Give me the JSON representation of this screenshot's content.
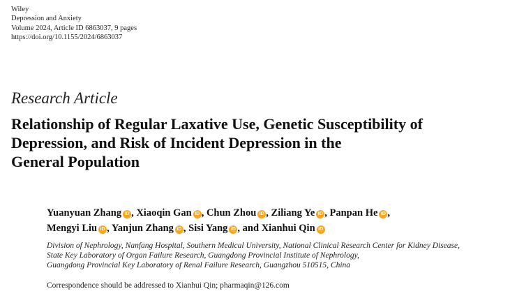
{
  "header": {
    "publisher": "Wiley",
    "journal": "Depression and Anxiety",
    "volume": "Volume 2024, Article ID 6863037, 9 pages",
    "doi": "https://doi.org/10.1155/2024/6863037"
  },
  "article_type": "Research Article",
  "title_lines": [
    "Relationship of Regular Laxative Use, Genetic Susceptibility of",
    "Depression, and Risk of Incident Depression in the",
    "General Population"
  ],
  "authors": [
    "Yuanyuan Zhang",
    "Xiaoqin Gan",
    "Chun Zhou",
    "Ziliang Ye",
    "Panpan He",
    "Mengyi Liu",
    "Yanjun Zhang",
    "Sisi Yang",
    "Xianhui Qin"
  ],
  "author_sep": ",",
  "author_and": "and",
  "orcid_icon_label": "iD",
  "orcid_color": "#f5a623",
  "affiliations": [
    "Division of Nephrology, Nanfang Hospital, Southern Medical University, National Clinical Research Center for Kidney Disease,",
    "State Key Laboratory of Organ Failure Research, Guangdong Provincial Institute of Nephrology,",
    "Guangdong Provincial Key Laboratory of Renal Failure Research, Guangzhou 510515, China"
  ],
  "correspondence": "Correspondence should be addressed to Xianhui Qin; pharmaqin@126.com"
}
